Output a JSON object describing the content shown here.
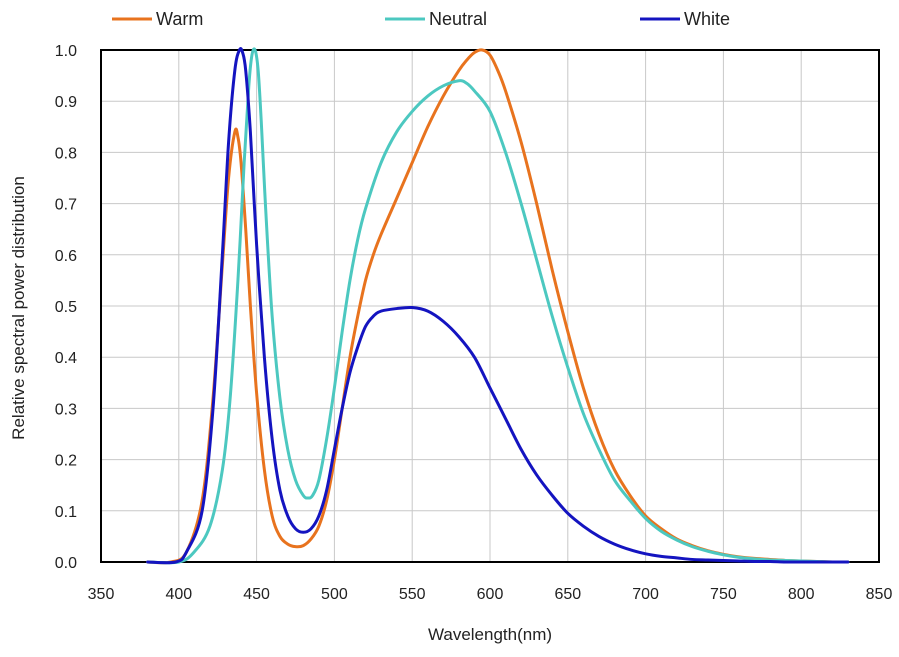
{
  "chart_data": {
    "type": "line",
    "title": "",
    "xlabel": "Wavelength(nm)",
    "ylabel": "Relative spectral power distribution",
    "xlim": [
      350,
      850
    ],
    "ylim": [
      0.0,
      1.0
    ],
    "xticks": [
      "350",
      "400",
      "450",
      "500",
      "550",
      "600",
      "650",
      "700",
      "750",
      "800",
      "850"
    ],
    "yticks": [
      "0.0",
      "0.1",
      "0.2",
      "0.3",
      "0.4",
      "0.5",
      "0.6",
      "0.7",
      "0.8",
      "0.9",
      "1.0"
    ],
    "grid": true,
    "legend_position": "top",
    "series": [
      {
        "name": "Warm",
        "color": "#e8731e",
        "x": [
          380,
          395,
          405,
          415,
          422,
          428,
          432,
          436,
          438,
          440,
          443,
          446,
          450,
          455,
          460,
          465,
          470,
          475,
          480,
          485,
          490,
          495,
          500,
          505,
          510,
          515,
          520,
          525,
          530,
          540,
          550,
          560,
          570,
          580,
          585,
          590,
          595,
          600,
          605,
          610,
          620,
          630,
          640,
          650,
          660,
          670,
          680,
          690,
          700,
          710,
          720,
          730,
          740,
          750,
          760,
          770,
          780,
          790,
          800,
          810,
          820,
          830
        ],
        "y": [
          0.0,
          0.0,
          0.02,
          0.12,
          0.32,
          0.58,
          0.75,
          0.84,
          0.83,
          0.78,
          0.65,
          0.5,
          0.33,
          0.18,
          0.09,
          0.05,
          0.035,
          0.03,
          0.032,
          0.045,
          0.07,
          0.12,
          0.2,
          0.3,
          0.4,
          0.48,
          0.55,
          0.6,
          0.64,
          0.71,
          0.78,
          0.85,
          0.91,
          0.96,
          0.98,
          0.995,
          1.0,
          0.99,
          0.96,
          0.92,
          0.82,
          0.7,
          0.57,
          0.45,
          0.34,
          0.25,
          0.18,
          0.13,
          0.09,
          0.065,
          0.045,
          0.032,
          0.022,
          0.015,
          0.01,
          0.007,
          0.005,
          0.003,
          0.002,
          0.001,
          0.0,
          0.0
        ]
      },
      {
        "name": "Neutral",
        "color": "#4cc8c0",
        "x": [
          380,
          400,
          410,
          420,
          428,
          433,
          438,
          442,
          445,
          447,
          449,
          451,
          453,
          456,
          460,
          465,
          470,
          475,
          480,
          483,
          486,
          490,
          495,
          500,
          505,
          510,
          515,
          520,
          530,
          540,
          550,
          560,
          570,
          580,
          585,
          590,
          600,
          610,
          620,
          630,
          640,
          650,
          660,
          670,
          680,
          690,
          700,
          710,
          720,
          730,
          740,
          750,
          760,
          770,
          780,
          790,
          800,
          810,
          820,
          830
        ],
        "y": [
          0.0,
          0.0,
          0.02,
          0.07,
          0.18,
          0.32,
          0.55,
          0.78,
          0.93,
          0.99,
          1.0,
          0.96,
          0.86,
          0.68,
          0.48,
          0.32,
          0.22,
          0.16,
          0.13,
          0.125,
          0.13,
          0.16,
          0.24,
          0.34,
          0.45,
          0.55,
          0.63,
          0.69,
          0.78,
          0.84,
          0.88,
          0.91,
          0.93,
          0.94,
          0.935,
          0.92,
          0.88,
          0.8,
          0.7,
          0.59,
          0.48,
          0.38,
          0.29,
          0.22,
          0.16,
          0.12,
          0.085,
          0.06,
          0.043,
          0.03,
          0.021,
          0.014,
          0.009,
          0.006,
          0.004,
          0.003,
          0.002,
          0.001,
          0.0,
          0.0
        ]
      },
      {
        "name": "White",
        "color": "#1414c0",
        "x": [
          380,
          398,
          405,
          415,
          422,
          428,
          432,
          436,
          439,
          441,
          443,
          446,
          450,
          455,
          460,
          465,
          470,
          475,
          480,
          485,
          490,
          495,
          500,
          505,
          510,
          515,
          520,
          525,
          530,
          540,
          550,
          560,
          570,
          580,
          590,
          600,
          610,
          620,
          630,
          640,
          650,
          660,
          670,
          680,
          690,
          700,
          710,
          720,
          730,
          740,
          750,
          760,
          770,
          780,
          790,
          800,
          810,
          820,
          830
        ],
        "y": [
          0.0,
          0.0,
          0.02,
          0.1,
          0.3,
          0.6,
          0.82,
          0.96,
          1.0,
          0.995,
          0.96,
          0.84,
          0.62,
          0.4,
          0.24,
          0.14,
          0.09,
          0.065,
          0.058,
          0.065,
          0.09,
          0.14,
          0.22,
          0.3,
          0.37,
          0.42,
          0.46,
          0.48,
          0.49,
          0.495,
          0.497,
          0.49,
          0.47,
          0.44,
          0.4,
          0.34,
          0.28,
          0.22,
          0.17,
          0.13,
          0.095,
          0.07,
          0.05,
          0.035,
          0.024,
          0.016,
          0.011,
          0.008,
          0.005,
          0.004,
          0.003,
          0.002,
          0.001,
          0.001,
          0.0,
          0.0,
          0.0,
          0.0,
          0.0
        ]
      }
    ]
  }
}
